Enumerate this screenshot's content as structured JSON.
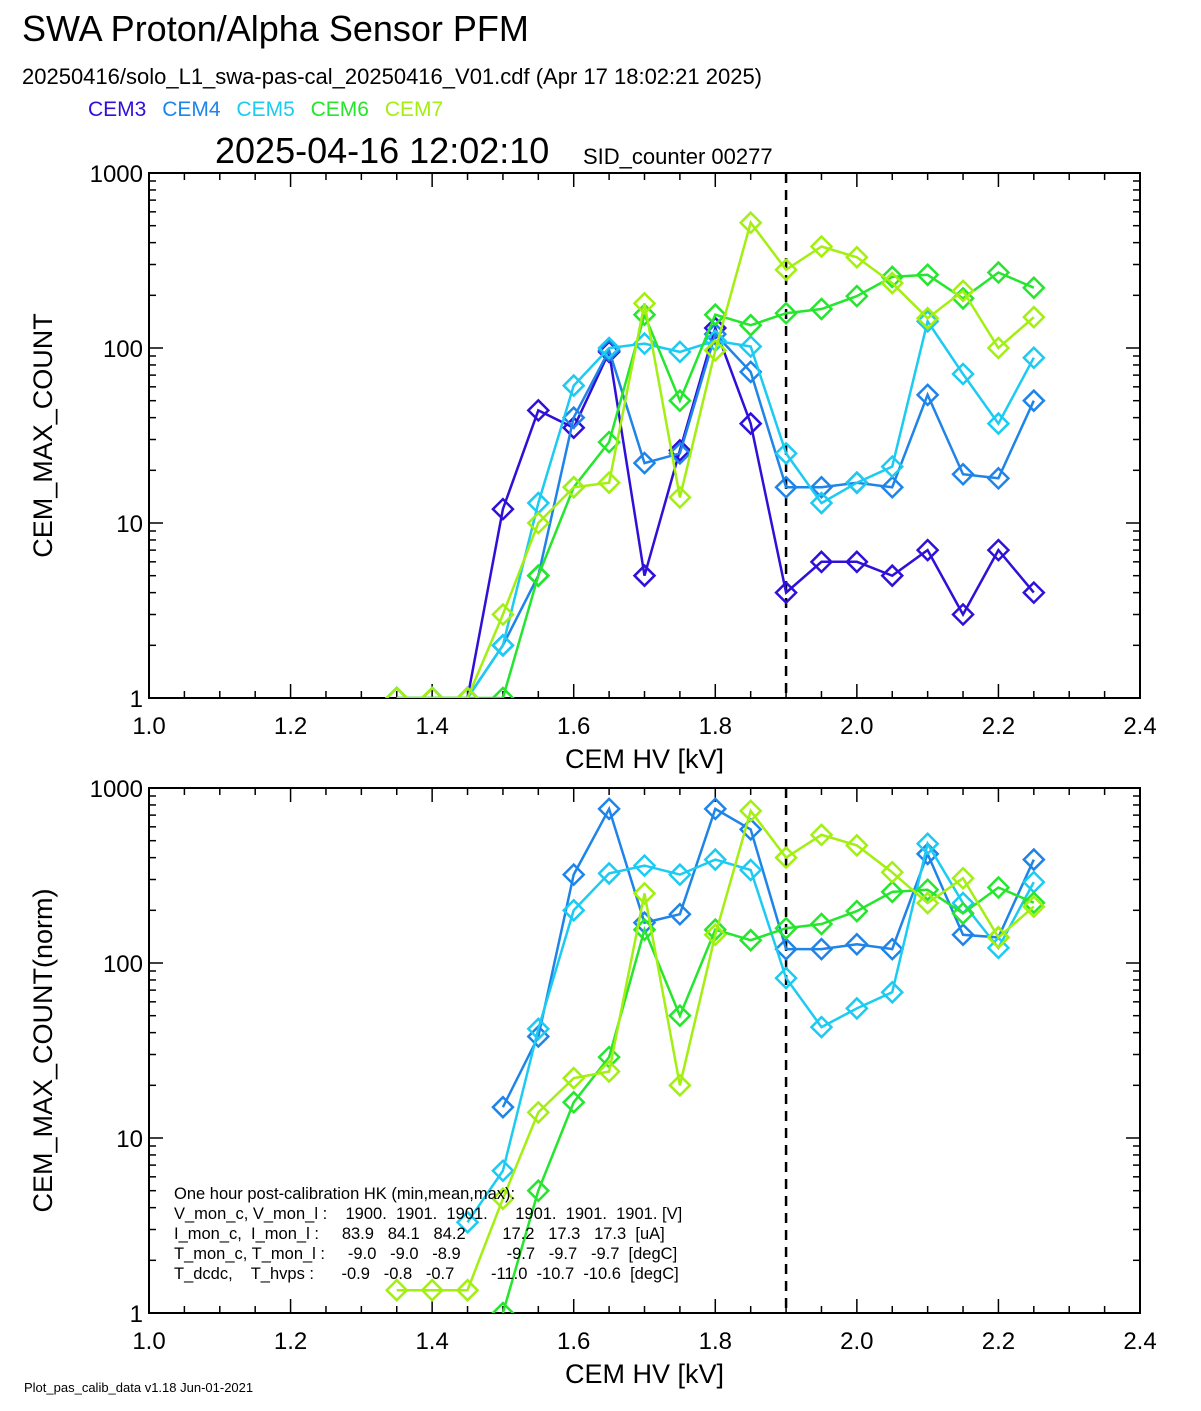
{
  "header": {
    "title": "SWA Proton/Alpha Sensor PFM",
    "subtitle": "20250416/solo_L1_swa-pas-cal_20250416_V01.cdf  (Apr 17 18:02:21 2025)",
    "timestamp": "2025-04-16 12:02:10",
    "sid_counter": "SID_counter 00277"
  },
  "legend": [
    {
      "name": "CEM3",
      "color": "#2f10d9"
    },
    {
      "name": "CEM4",
      "color": "#1f84e8"
    },
    {
      "name": "CEM5",
      "color": "#1ccbf2"
    },
    {
      "name": "CEM6",
      "color": "#25e62d"
    },
    {
      "name": "CEM7",
      "color": "#a3ef12"
    }
  ],
  "footer": "Plot_pas_calib_data v1.18 Jun-01-2021",
  "hk_box": {
    "lines": [
      "One hour post-calibration HK (min,mean,max):",
      "V_mon_c, V_mon_l :    1900.  1901.  1901.      1901.  1901.  1901. [V]",
      "I_mon_c,  I_mon_l :     83.9   84.1   84.2        17.2   17.3   17.3  [uA]",
      "T_mon_c, T_mon_l :     -9.0   -9.0   -8.9          -9.7   -9.7   -9.7  [degC]",
      "T_dcdc,    T_hvps :      -0.9   -0.8   -0.7        -11.0  -10.7  -10.6  [degC]"
    ]
  },
  "chart_data": [
    {
      "type": "line",
      "marker": "diamond",
      "xlabel": "CEM HV [kV]",
      "ylabel": "CEM_MAX_COUNT",
      "xlim": [
        1.0,
        2.4
      ],
      "ylim": [
        1,
        1000
      ],
      "yscale": "log",
      "xticks": [
        "1.0",
        "1.2",
        "1.4",
        "1.6",
        "1.8",
        "2.0",
        "2.2",
        "2.4"
      ],
      "yticks": [
        "1",
        "10",
        "100",
        "1000"
      ],
      "vline": 1.9,
      "series": [
        {
          "name": "CEM3",
          "x": [
            1.35,
            1.4,
            1.45,
            1.5,
            1.55,
            1.6,
            1.65,
            1.7,
            1.75,
            1.8,
            1.85,
            1.9,
            1.95,
            2.0,
            2.05,
            2.1,
            2.15,
            2.2,
            2.25
          ],
          "y": [
            1,
            1,
            1,
            12,
            44,
            35,
            95,
            5,
            26,
            130,
            37,
            4,
            6,
            6,
            5,
            7,
            3,
            7,
            4
          ]
        },
        {
          "name": "CEM4",
          "x": [
            1.35,
            1.4,
            1.45,
            1.5,
            1.55,
            1.6,
            1.65,
            1.7,
            1.75,
            1.8,
            1.85,
            1.9,
            1.95,
            2.0,
            2.05,
            2.1,
            2.15,
            2.2,
            2.25
          ],
          "y": [
            1,
            1,
            1,
            2,
            5,
            40,
            97,
            22,
            25,
            120,
            73,
            16,
            16,
            17,
            16,
            54,
            19,
            18,
            50
          ]
        },
        {
          "name": "CEM5",
          "x": [
            1.35,
            1.4,
            1.45,
            1.5,
            1.55,
            1.6,
            1.65,
            1.7,
            1.75,
            1.8,
            1.85,
            1.9,
            1.95,
            2.0,
            2.05,
            2.1,
            2.15,
            2.2,
            2.25
          ],
          "y": [
            1,
            1,
            1,
            2,
            13,
            61,
            100,
            106,
            95,
            110,
            102,
            25,
            13,
            17,
            21,
            142,
            71,
            37,
            88
          ]
        },
        {
          "name": "CEM6",
          "x": [
            1.35,
            1.4,
            1.45,
            1.5,
            1.55,
            1.6,
            1.65,
            1.7,
            1.75,
            1.8,
            1.85,
            1.9,
            1.95,
            2.0,
            2.05,
            2.1,
            2.15,
            2.2,
            2.25
          ],
          "y": [
            1,
            1,
            1,
            1,
            5,
            16,
            29,
            155,
            50,
            155,
            135,
            158,
            167,
            198,
            255,
            262,
            192,
            270,
            221
          ]
        },
        {
          "name": "CEM7",
          "x": [
            1.35,
            1.4,
            1.45,
            1.5,
            1.55,
            1.6,
            1.65,
            1.7,
            1.75,
            1.8,
            1.85,
            1.9,
            1.95,
            2.0,
            2.05,
            2.1,
            2.15,
            2.2,
            2.25
          ],
          "y": [
            1,
            1,
            1,
            3,
            10,
            16,
            17,
            180,
            14,
            97,
            520,
            280,
            380,
            330,
            235,
            148,
            212,
            100,
            150
          ]
        }
      ]
    },
    {
      "type": "line",
      "marker": "diamond",
      "xlabel": "CEM HV [kV]",
      "ylabel": "CEM_MAX_COUNT(norm)",
      "xlim": [
        1.0,
        2.4
      ],
      "ylim": [
        1,
        1000
      ],
      "yscale": "log",
      "xticks": [
        "1.0",
        "1.2",
        "1.4",
        "1.6",
        "1.8",
        "2.0",
        "2.2",
        "2.4"
      ],
      "yticks": [
        "1",
        "10",
        "100",
        "1000"
      ],
      "vline": 1.9,
      "series": [
        {
          "name": "CEM4",
          "x": [
            1.5,
            1.55,
            1.6,
            1.65,
            1.7,
            1.75,
            1.8,
            1.85,
            1.9,
            1.95,
            2.0,
            2.05,
            2.1,
            2.15,
            2.2,
            2.25
          ],
          "y": [
            15,
            38,
            320,
            760,
            170,
            190,
            760,
            580,
            120,
            120,
            128,
            120,
            420,
            145,
            140,
            390
          ]
        },
        {
          "name": "CEM5",
          "x": [
            1.45,
            1.5,
            1.55,
            1.6,
            1.65,
            1.7,
            1.75,
            1.8,
            1.85,
            1.9,
            1.95,
            2.0,
            2.05,
            2.1,
            2.15,
            2.2,
            2.25
          ],
          "y": [
            3.3,
            6.5,
            42,
            200,
            325,
            360,
            320,
            390,
            340,
            82,
            43,
            55,
            68,
            480,
            220,
            122,
            290
          ]
        },
        {
          "name": "CEM6",
          "x": [
            1.5,
            1.55,
            1.6,
            1.65,
            1.7,
            1.75,
            1.8,
            1.85,
            1.9,
            1.95,
            2.0,
            2.05,
            2.1,
            2.15,
            2.2,
            2.25
          ],
          "y": [
            1,
            5,
            16,
            29,
            155,
            50,
            155,
            135,
            158,
            167,
            198,
            255,
            262,
            192,
            270,
            221
          ]
        },
        {
          "name": "CEM7",
          "x": [
            1.35,
            1.4,
            1.45,
            1.5,
            1.55,
            1.6,
            1.65,
            1.7,
            1.75,
            1.8,
            1.85,
            1.9,
            1.95,
            2.0,
            2.05,
            2.1,
            2.15,
            2.2,
            2.25
          ],
          "y": [
            1.35,
            1.35,
            1.35,
            4.5,
            14,
            22,
            24,
            250,
            20,
            145,
            740,
            400,
            540,
            470,
            330,
            220,
            305,
            140,
            210
          ]
        }
      ]
    }
  ]
}
